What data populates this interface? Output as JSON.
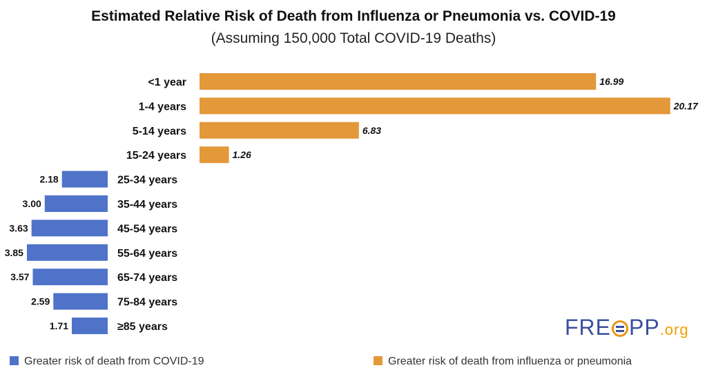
{
  "chart_data": {
    "type": "bar",
    "orientation": "horizontal-diverging",
    "title": "Estimated Relative Risk of Death from Influenza or Pneumonia vs. COVID-19",
    "subtitle": "(Assuming 150,000 Total COVID-19 Deaths)",
    "categories": [
      "<1 year",
      "1-4 years",
      "5-14 years",
      "15-24 years",
      "25-34 years",
      "35-44 years",
      "45-54 years",
      "55-64 years",
      "65-74 years",
      "75-84 years",
      "≥85 years"
    ],
    "series": [
      {
        "name": "Greater risk of death from influenza or pneumonia",
        "color": "#e3983a",
        "values": [
          16.99,
          20.17,
          6.83,
          1.26,
          null,
          null,
          null,
          null,
          null,
          null,
          null
        ],
        "labels": [
          "16.99",
          "20.17",
          "6.83",
          "1.26",
          "",
          "",
          "",
          "",
          "",
          "",
          ""
        ]
      },
      {
        "name": "Greater risk of death from COVID-19",
        "color": "#4f73c9",
        "values": [
          null,
          null,
          null,
          null,
          2.18,
          3.0,
          3.63,
          3.85,
          3.57,
          2.59,
          1.71
        ],
        "labels": [
          "",
          "",
          "",
          "",
          "2.18",
          "3.00",
          "3.63",
          "3.85",
          "3.57",
          "2.59",
          "1.71"
        ]
      }
    ],
    "legend": [
      {
        "label": "Greater risk of death from COVID-19",
        "color": "#4f73c9"
      },
      {
        "label": "Greater risk of death from influenza or pneumonia",
        "color": "#e3983a"
      }
    ],
    "legend_position": "bottom",
    "grid": false
  },
  "logo": {
    "main": "FRE",
    "opp": "PP",
    "org": ".org"
  }
}
